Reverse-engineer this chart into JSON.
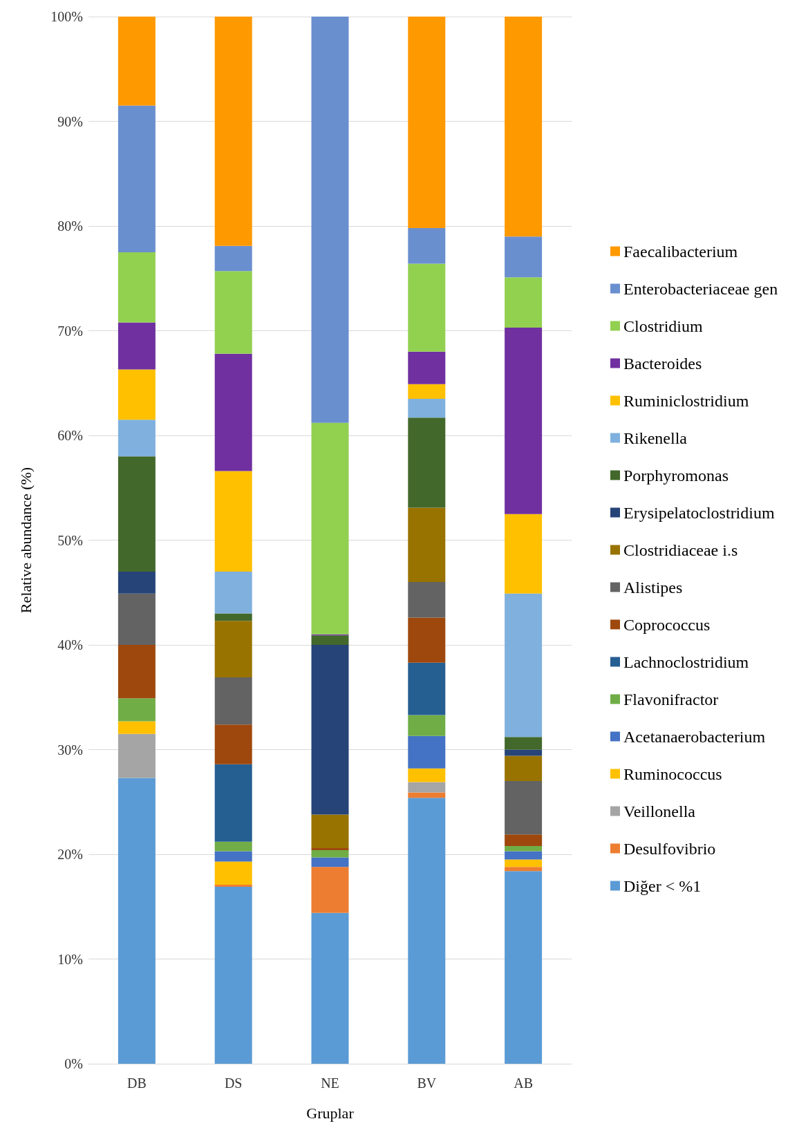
{
  "chart_data": {
    "type": "bar",
    "stacked": true,
    "xlabel": "Gruplar",
    "ylabel": "Relative abundance (%)",
    "categories": [
      "DB",
      "DS",
      "NE",
      "BV",
      "AB"
    ],
    "ylim": [
      0,
      100
    ],
    "yticks": [
      {
        "value": 0,
        "label": "0%"
      },
      {
        "value": 10,
        "label": "10%"
      },
      {
        "value": 20,
        "label": "20%"
      },
      {
        "value": 30,
        "label": "30%"
      },
      {
        "value": 40,
        "label": "40%"
      },
      {
        "value": 50,
        "label": "50%"
      },
      {
        "value": 60,
        "label": "60%"
      },
      {
        "value": 70,
        "label": "70%"
      },
      {
        "value": 80,
        "label": "80%"
      },
      {
        "value": 90,
        "label": "90%"
      },
      {
        "value": 100,
        "label": "100%"
      }
    ],
    "grid": "y",
    "legend": "right",
    "series": [
      {
        "name": "Diğer < %1",
        "color": "#5b9bd5",
        "values": [
          27.3,
          16.9,
          14.4,
          25.4,
          18.4
        ]
      },
      {
        "name": "Desulfovibrio",
        "color": "#ed7d31",
        "values": [
          0,
          0.2,
          4.4,
          0.5,
          0.4
        ]
      },
      {
        "name": "Veillonella",
        "color": "#a5a5a5",
        "values": [
          4.2,
          0,
          0,
          1.0,
          0
        ]
      },
      {
        "name": "Ruminococcus",
        "color": "#ffc000",
        "values": [
          1.2,
          2.2,
          0,
          1.3,
          0.7
        ]
      },
      {
        "name": "Acetanaerobacterium",
        "color": "#4472c4",
        "values": [
          0,
          1.0,
          0.9,
          3.1,
          0.8
        ]
      },
      {
        "name": "Flavonifractor",
        "color": "#70ad47",
        "values": [
          2.2,
          0.9,
          0.7,
          2.0,
          0.5
        ]
      },
      {
        "name": "Lachnoclostridium",
        "color": "#255e91",
        "values": [
          0,
          7.4,
          0,
          5.0,
          0
        ]
      },
      {
        "name": "Coprococcus",
        "color": "#9e480e",
        "values": [
          5.1,
          3.8,
          0.2,
          4.3,
          1.1
        ]
      },
      {
        "name": "Alistipes",
        "color": "#636363",
        "values": [
          4.9,
          4.5,
          0,
          3.4,
          5.1
        ]
      },
      {
        "name": "Clostridiaceae i.s",
        "color": "#997300",
        "values": [
          0,
          5.4,
          3.2,
          7.1,
          2.4
        ]
      },
      {
        "name": "Erysipelatoclostridium",
        "color": "#264478",
        "values": [
          2.1,
          0,
          16.2,
          0,
          0.6
        ]
      },
      {
        "name": "Porphyromonas",
        "color": "#43682b",
        "values": [
          11.0,
          0.7,
          0.9,
          8.6,
          1.2
        ]
      },
      {
        "name": "Rikenella",
        "color": "#7fb0de",
        "values": [
          3.5,
          4.0,
          0,
          1.8,
          13.7
        ]
      },
      {
        "name": "Ruminiclostridium",
        "color": "#ffc000",
        "values": [
          4.8,
          9.6,
          0,
          1.4,
          7.6
        ]
      },
      {
        "name": "Bacteroides",
        "color": "#7030a0",
        "values": [
          4.5,
          11.2,
          0.1,
          3.1,
          17.8
        ]
      },
      {
        "name": "Clostridium",
        "color": "#92d050",
        "values": [
          6.7,
          7.9,
          20.2,
          8.4,
          4.8
        ]
      },
      {
        "name": "Enterobacteriaceae gen",
        "color": "#6a8fcf",
        "values": [
          14.0,
          2.4,
          38.8,
          3.4,
          3.9
        ]
      },
      {
        "name": "Faecalibacterium",
        "color": "#ff9900",
        "values": [
          8.5,
          21.9,
          0,
          20.3,
          21.0
        ]
      }
    ]
  }
}
